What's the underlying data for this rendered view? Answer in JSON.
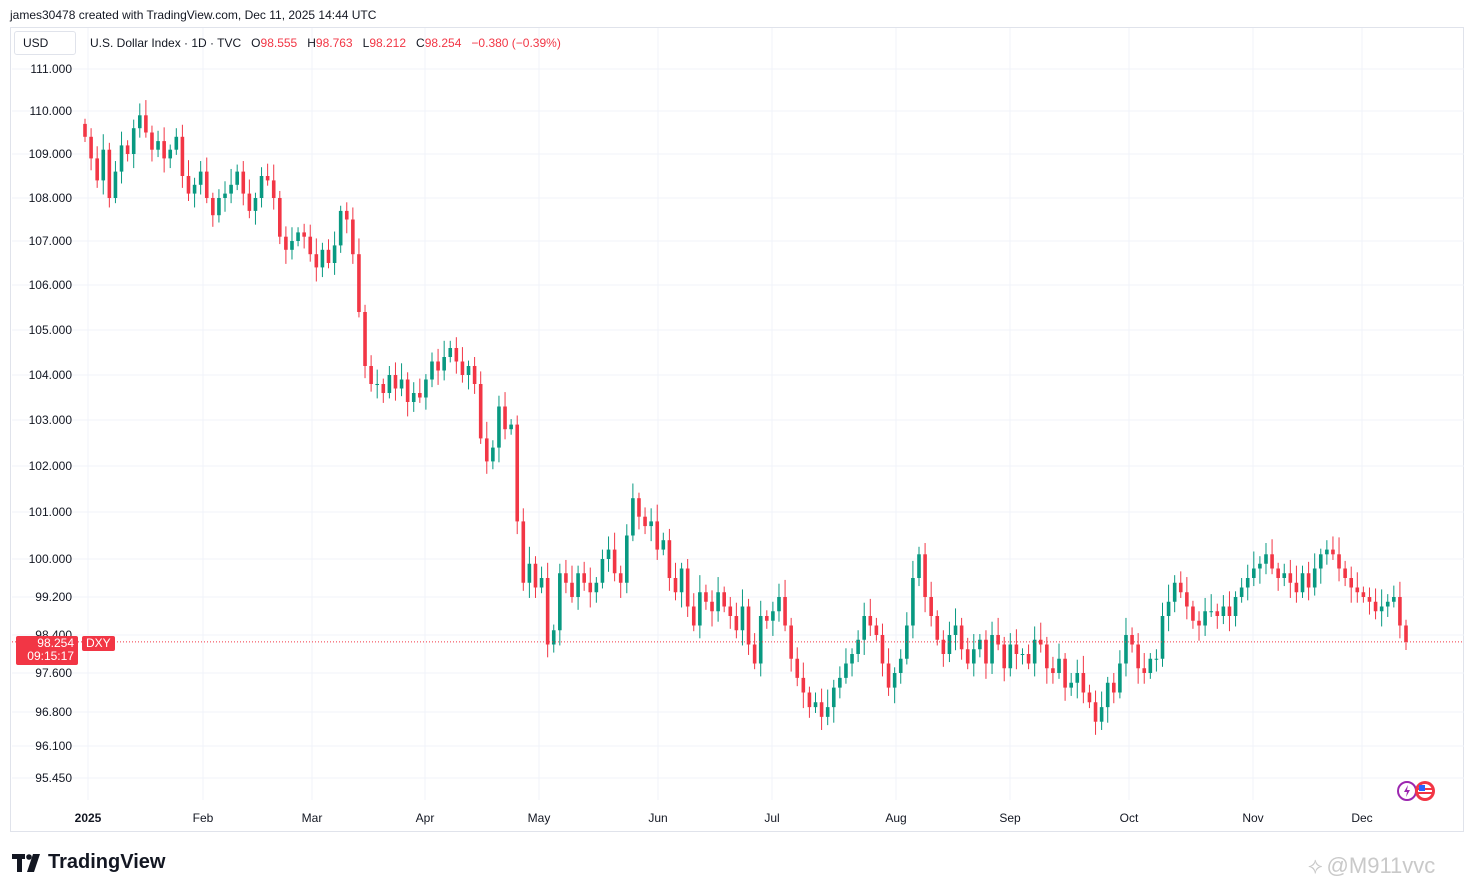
{
  "header": {
    "attribution": "james30478 created with TradingView.com, Dec 11, 2025 14:44 UTC"
  },
  "currency": "USD",
  "legend": {
    "name": "U.S. Dollar Index · 1D · TVC",
    "o_label": "O",
    "o_val": "98.555",
    "h_label": "H",
    "h_val": "98.763",
    "l_label": "L",
    "l_val": "98.212",
    "c_label": "C",
    "c_val": "98.254",
    "change": "−0.380 (−0.39%)"
  },
  "price_tag": {
    "price": "98.254",
    "countdown": "09:15:17",
    "symbol": "DXY"
  },
  "branding": {
    "logo_text": "TradingView",
    "watermark": "@M911vvc"
  },
  "colors": {
    "up": "#089981",
    "down": "#f23645",
    "grid": "#f0f3fa",
    "text": "#131722"
  },
  "chart_data": {
    "type": "candlestick",
    "title": "U.S. Dollar Index · 1D · TVC",
    "y_ticks": [
      "111.000",
      "110.000",
      "109.000",
      "108.000",
      "107.000",
      "106.000",
      "105.000",
      "104.000",
      "103.000",
      "102.000",
      "101.000",
      "100.000",
      "99.200",
      "98.400",
      "97.600",
      "96.800",
      "96.100",
      "95.450"
    ],
    "x_ticks": [
      "2025",
      "Feb",
      "Mar",
      "Apr",
      "May",
      "Jun",
      "Jul",
      "Aug",
      "Sep",
      "Oct",
      "Nov",
      "Dec"
    ],
    "scale": "log",
    "last_close": 98.254,
    "series": [
      {
        "name": "DXY",
        "closes": [
          109.4,
          108.9,
          108.4,
          109.1,
          108.0,
          108.6,
          109.2,
          109.0,
          109.6,
          109.9,
          109.5,
          109.1,
          109.3,
          108.9,
          109.1,
          109.4,
          108.5,
          108.1,
          108.3,
          108.6,
          108.0,
          107.6,
          108.0,
          108.1,
          108.3,
          108.6,
          108.1,
          107.7,
          108.0,
          108.5,
          108.4,
          108.0,
          107.1,
          106.8,
          107.0,
          107.2,
          107.1,
          106.7,
          106.4,
          106.8,
          106.5,
          106.9,
          107.7,
          107.5,
          106.7,
          105.4,
          104.2,
          103.8,
          103.8,
          103.6,
          104.0,
          103.7,
          103.9,
          103.4,
          103.6,
          103.5,
          103.9,
          104.3,
          104.1,
          104.4,
          104.6,
          104.3,
          104.0,
          104.2,
          103.8,
          102.6,
          102.1,
          102.4,
          103.3,
          102.8,
          102.9,
          100.8,
          99.5,
          99.9,
          99.4,
          99.6,
          98.2,
          98.5,
          99.7,
          99.5,
          99.2,
          99.7,
          99.5,
          99.3,
          99.5,
          100.0,
          100.2,
          99.7,
          99.5,
          100.5,
          101.3,
          100.9,
          100.7,
          100.8,
          100.2,
          100.4,
          99.6,
          99.3,
          99.8,
          99.0,
          98.6,
          99.3,
          99.1,
          98.9,
          99.3,
          99.0,
          98.8,
          98.5,
          99.0,
          98.2,
          97.8,
          98.8,
          98.7,
          98.9,
          99.2,
          98.6,
          97.9,
          97.5,
          97.2,
          96.9,
          97.0,
          96.7,
          96.9,
          97.3,
          97.5,
          97.8,
          98.0,
          98.3,
          98.8,
          98.6,
          98.4,
          97.8,
          97.3,
          97.6,
          97.9,
          98.6,
          99.6,
          100.1,
          99.2,
          98.8,
          98.3,
          98.0,
          98.4,
          98.6,
          98.1,
          97.8,
          98.1,
          98.3,
          97.8,
          98.4,
          98.2,
          97.7,
          98.2,
          98.0,
          98.0,
          97.8,
          98.3,
          98.2,
          97.7,
          97.6,
          97.9,
          97.3,
          97.4,
          97.6,
          97.2,
          97.0,
          96.6,
          96.9,
          97.4,
          97.2,
          97.8,
          98.4,
          98.2,
          97.7,
          97.6,
          97.9,
          97.9,
          98.8,
          99.1,
          99.5,
          99.3,
          99.0,
          98.7,
          98.6,
          98.9,
          98.9,
          98.8,
          99.0,
          98.8,
          99.2,
          99.4,
          99.6,
          99.8,
          99.9,
          100.1,
          99.8,
          99.6,
          99.7,
          99.5,
          99.3,
          99.7,
          99.4,
          99.8,
          100.1,
          100.2,
          100.1,
          99.8,
          99.6,
          99.4,
          99.3,
          99.2,
          99.1,
          98.9,
          99.0,
          99.1,
          99.2,
          98.6,
          98.254
        ]
      }
    ]
  }
}
